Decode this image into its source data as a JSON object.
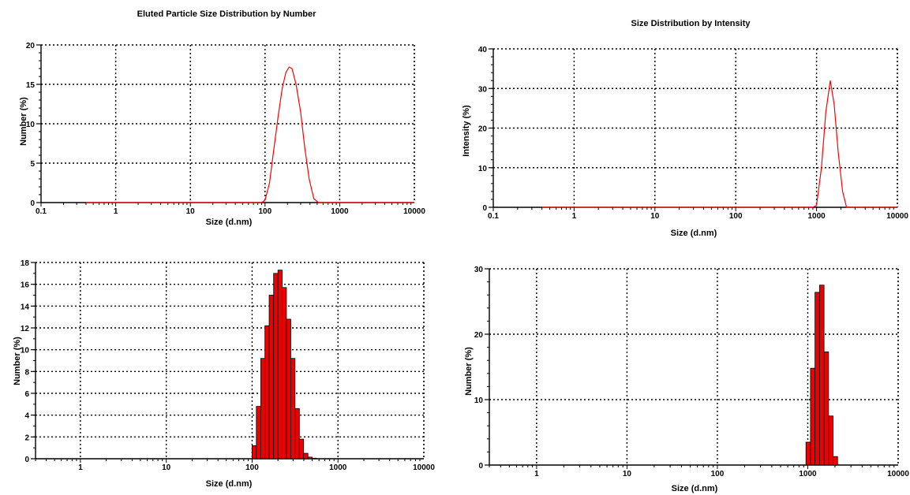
{
  "chart_data": [
    {
      "type": "line",
      "title": "Eluted Particle Size Distribution by Number",
      "xlabel": "Size (d.nm)",
      "ylabel": "Number (%)",
      "xscale": "log",
      "xlim": [
        0.1,
        10000
      ],
      "ylim": [
        0,
        20
      ],
      "xticks": [
        "0.1",
        "1",
        "10",
        "100",
        "1000",
        "10000"
      ],
      "yticks": [
        "0",
        "5",
        "10",
        "15",
        "20"
      ],
      "grid": true,
      "color": "#ff0000",
      "series": [
        {
          "x": [
            0.4,
            1,
            10,
            90,
            100,
            115,
            130,
            150,
            170,
            190,
            210,
            230,
            260,
            300,
            340,
            390,
            450,
            520,
            1000,
            10000
          ],
          "y": [
            0,
            0,
            0,
            0,
            0.3,
            2.5,
            6.5,
            11,
            14.5,
            16.5,
            17.2,
            17,
            15,
            11.5,
            7,
            3,
            0.5,
            0,
            0,
            0
          ]
        }
      ]
    },
    {
      "type": "line",
      "title": "Size Distribution by Intensity",
      "xlabel": "Size (d.nm)",
      "ylabel": "Intensity (%)",
      "xscale": "log",
      "xlim": [
        0.1,
        10000
      ],
      "ylim": [
        0,
        40
      ],
      "xticks": [
        "0.1",
        "1",
        "10",
        "100",
        "1000",
        "10000"
      ],
      "yticks": [
        "0",
        "10",
        "20",
        "30",
        "40"
      ],
      "grid": true,
      "color": "#ff0000",
      "series": [
        {
          "x": [
            0.4,
            1,
            10,
            100,
            900,
            1000,
            1150,
            1300,
            1480,
            1650,
            1850,
            2100,
            2350,
            10000
          ],
          "y": [
            0,
            0,
            0,
            0,
            0,
            0.5,
            10,
            24,
            32,
            26,
            14,
            4,
            0,
            0
          ]
        }
      ]
    },
    {
      "type": "bar",
      "title": "",
      "xlabel": "Size (d.nm)",
      "ylabel": "Number (%)",
      "xscale": "log",
      "xlim": [
        0.3,
        10000
      ],
      "ylim": [
        0,
        18
      ],
      "xticks": [
        "1",
        "10",
        "100",
        "1000",
        "10000"
      ],
      "yticks": [
        "0",
        "2",
        "4",
        "6",
        "8",
        "10",
        "12",
        "14",
        "16",
        "18"
      ],
      "grid": true,
      "color": "#ee0000",
      "bin_edges": [
        100,
        112,
        126,
        141,
        158,
        178,
        200,
        224,
        251,
        282,
        316,
        355,
        398,
        447,
        501,
        562
      ],
      "values": [
        1.2,
        4.8,
        9.2,
        12.2,
        15,
        17,
        17.3,
        15.7,
        12.8,
        9.2,
        4.6,
        1.8,
        0.5,
        0.15,
        0.05
      ]
    },
    {
      "type": "bar",
      "title": "",
      "xlabel": "Size (d.nm)",
      "ylabel": "Number (%)",
      "xscale": "log",
      "xlim": [
        0.3,
        10000
      ],
      "ylim": [
        0,
        30
      ],
      "xticks": [
        "1",
        "10",
        "100",
        "1000",
        "10000"
      ],
      "yticks": [
        "0",
        "10",
        "20",
        "30"
      ],
      "grid": true,
      "color": "#ee0000",
      "bin_edges": [
        955,
        1072,
        1202,
        1349,
        1514,
        1698,
        1905,
        2138,
        2399
      ],
      "values": [
        3.5,
        14.8,
        26.4,
        27.5,
        17.3,
        7.5,
        1.3,
        0
      ]
    }
  ]
}
